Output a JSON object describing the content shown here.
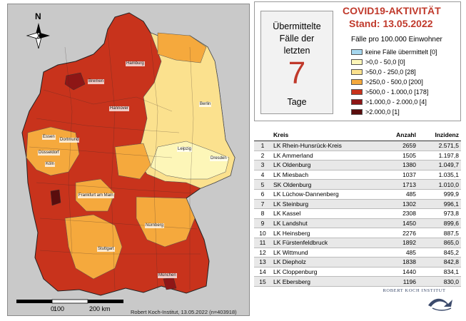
{
  "header": {
    "title": "COVID19-AKTIVITÄT",
    "date": "Stand: 13.05.2022"
  },
  "days_box": {
    "line1": "Übermittelte",
    "line2": "Fälle der",
    "line3": "letzten",
    "number": "7",
    "line4": "Tage"
  },
  "legend": {
    "title": "Fälle pro 100.000 Einwohner",
    "items": [
      {
        "label": "keine Fälle übermittelt [0]",
        "color": "#a6d7ee"
      },
      {
        "label": ">0,0 - 50,0 [0]",
        "color": "#fdf6b8"
      },
      {
        "label": ">50,0 - 250,0 [28]",
        "color": "#fbe18e"
      },
      {
        "label": ">250,0 - 500,0 [200]",
        "color": "#f5a93d"
      },
      {
        "label": ">500,0 - 1.000,0 [178]",
        "color": "#c8331c"
      },
      {
        "label": ">1.000,0 - 2.000,0 [4]",
        "color": "#8e1616"
      },
      {
        "label": ">2.000,0 [1]",
        "color": "#5a0d0d"
      }
    ]
  },
  "table": {
    "headers": [
      "",
      "Kreis",
      "Anzahl",
      "Inzidenz"
    ],
    "rows": [
      [
        "1",
        "LK Rhein-Hunsrück-Kreis",
        "2659",
        "2.571,5"
      ],
      [
        "2",
        "LK Ammerland",
        "1505",
        "1.197,8"
      ],
      [
        "3",
        "LK Oldenburg",
        "1380",
        "1.049,7"
      ],
      [
        "4",
        "LK Miesbach",
        "1037",
        "1.035,1"
      ],
      [
        "5",
        "SK Oldenburg",
        "1713",
        "1.010,0"
      ],
      [
        "6",
        "LK Lüchow-Dannenberg",
        "485",
        "999,9"
      ],
      [
        "7",
        "LK Steinburg",
        "1302",
        "996,1"
      ],
      [
        "8",
        "LK Kassel",
        "2308",
        "973,8"
      ],
      [
        "9",
        "LK Landshut",
        "1450",
        "899,6"
      ],
      [
        "10",
        "LK Heinsberg",
        "2276",
        "887,5"
      ],
      [
        "11",
        "LK Fürstenfeldbruck",
        "1892",
        "865,0"
      ],
      [
        "12",
        "LK Wittmund",
        "485",
        "845,2"
      ],
      [
        "13",
        "LK Diepholz",
        "1838",
        "842,8"
      ],
      [
        "14",
        "LK Cloppenburg",
        "1440",
        "834,1"
      ],
      [
        "15",
        "LK Ebersberg",
        "1196",
        "830,0"
      ]
    ]
  },
  "map": {
    "north": "N",
    "scale_labels": [
      "0",
      "100",
      "200 km"
    ],
    "credit": "Robert Koch-Institut, 13.05.2022 (n=403918)",
    "cities": [
      {
        "name": "Hamburg"
      },
      {
        "name": "Bremen"
      },
      {
        "name": "Hannover"
      },
      {
        "name": "Berlin"
      },
      {
        "name": "Essen"
      },
      {
        "name": "Dortmund"
      },
      {
        "name": "Düsseldorf"
      },
      {
        "name": "Köln"
      },
      {
        "name": "Leipzig"
      },
      {
        "name": "Dresden"
      },
      {
        "name": "Frankfurt am Main"
      },
      {
        "name": "Nürnberg"
      },
      {
        "name": "Stuttgart"
      },
      {
        "name": "München"
      }
    ]
  },
  "logo": {
    "text": "ROBERT KOCH INSTITUT"
  }
}
